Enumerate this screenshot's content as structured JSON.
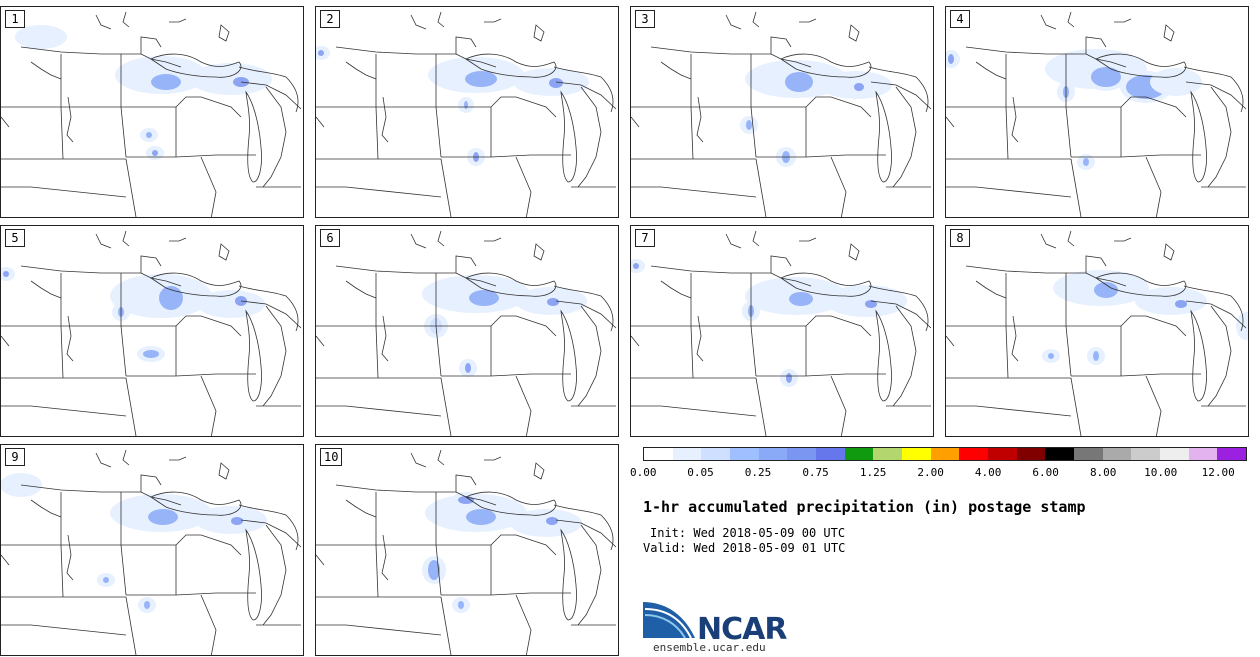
{
  "panels": [
    "1",
    "2",
    "3",
    "4",
    "5",
    "6",
    "7",
    "8",
    "9",
    "10"
  ],
  "colorbar": {
    "colors": [
      "#ffffff",
      "#e6f0ff",
      "#cfdfff",
      "#9fbfff",
      "#8aa9f7",
      "#7b96f0",
      "#6577ea",
      "#109a10",
      "#b3d66e",
      "#ffff00",
      "#ffa000",
      "#ff0000",
      "#c00000",
      "#800000",
      "#000000",
      "#777777",
      "#aaaaaa",
      "#cccccc",
      "#eeeeee",
      "#e3b3f0",
      "#9b20e0"
    ],
    "labels": [
      "0.00",
      "0.05",
      "0.25",
      "0.75",
      "1.25",
      "2.00",
      "4.00",
      "6.00",
      "8.00",
      "10.00",
      "12.00"
    ]
  },
  "title": "1-hr accumulated precipitation (in) postage stamp",
  "init_label": "Init:",
  "init_value": "Wed 2018-05-09 00 UTC",
  "valid_label": "Valid:",
  "valid_value": "Wed 2018-05-09 01 UTC",
  "logo_text": "NCAR",
  "url": "ensemble.ucar.edu"
}
